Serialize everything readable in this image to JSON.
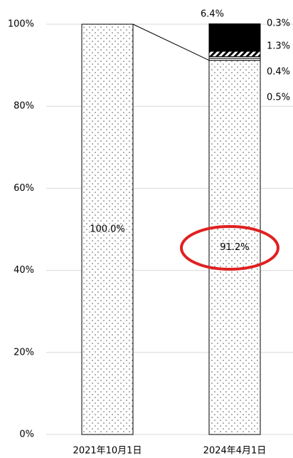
{
  "chart_data": {
    "type": "stacked_bar",
    "categories": [
      "2021年10月1日",
      "2024年4月1日"
    ],
    "series": [
      {
        "color": "#ffffff",
        "pattern": "dots",
        "values": [
          100,
          91.2
        ],
        "value_labels": [
          "100.0%",
          "91.2%"
        ]
      },
      {
        "color": "#ffffff",
        "values": [
          null,
          0.5
        ],
        "value_labels": [
          null,
          "0.5%"
        ]
      },
      {
        "color": "#ffffff",
        "values": [
          null,
          0.4
        ],
        "value_labels": [
          null,
          "0.4%"
        ]
      },
      {
        "color": "#000000",
        "pattern": "hatch",
        "values": [
          null,
          1.3
        ],
        "value_labels": [
          null,
          "1.3%"
        ]
      },
      {
        "color": "#000000",
        "values": [
          null,
          6.4
        ],
        "value_labels": [
          null,
          "6.4%"
        ]
      },
      {
        "color": "#000000",
        "values": [
          null,
          0.3
        ],
        "value_labels": [
          null,
          "0.3%"
        ]
      }
    ],
    "ylim": [
      0,
      100
    ],
    "yticks": [
      {
        "value": 0,
        "label": "0%"
      },
      {
        "value": 20,
        "label": "20%"
      },
      {
        "value": 40,
        "label": "40%"
      },
      {
        "value": 60,
        "label": "60%"
      },
      {
        "value": 80,
        "label": "80%"
      },
      {
        "value": 100,
        "label": "100%"
      }
    ],
    "grid": true
  }
}
